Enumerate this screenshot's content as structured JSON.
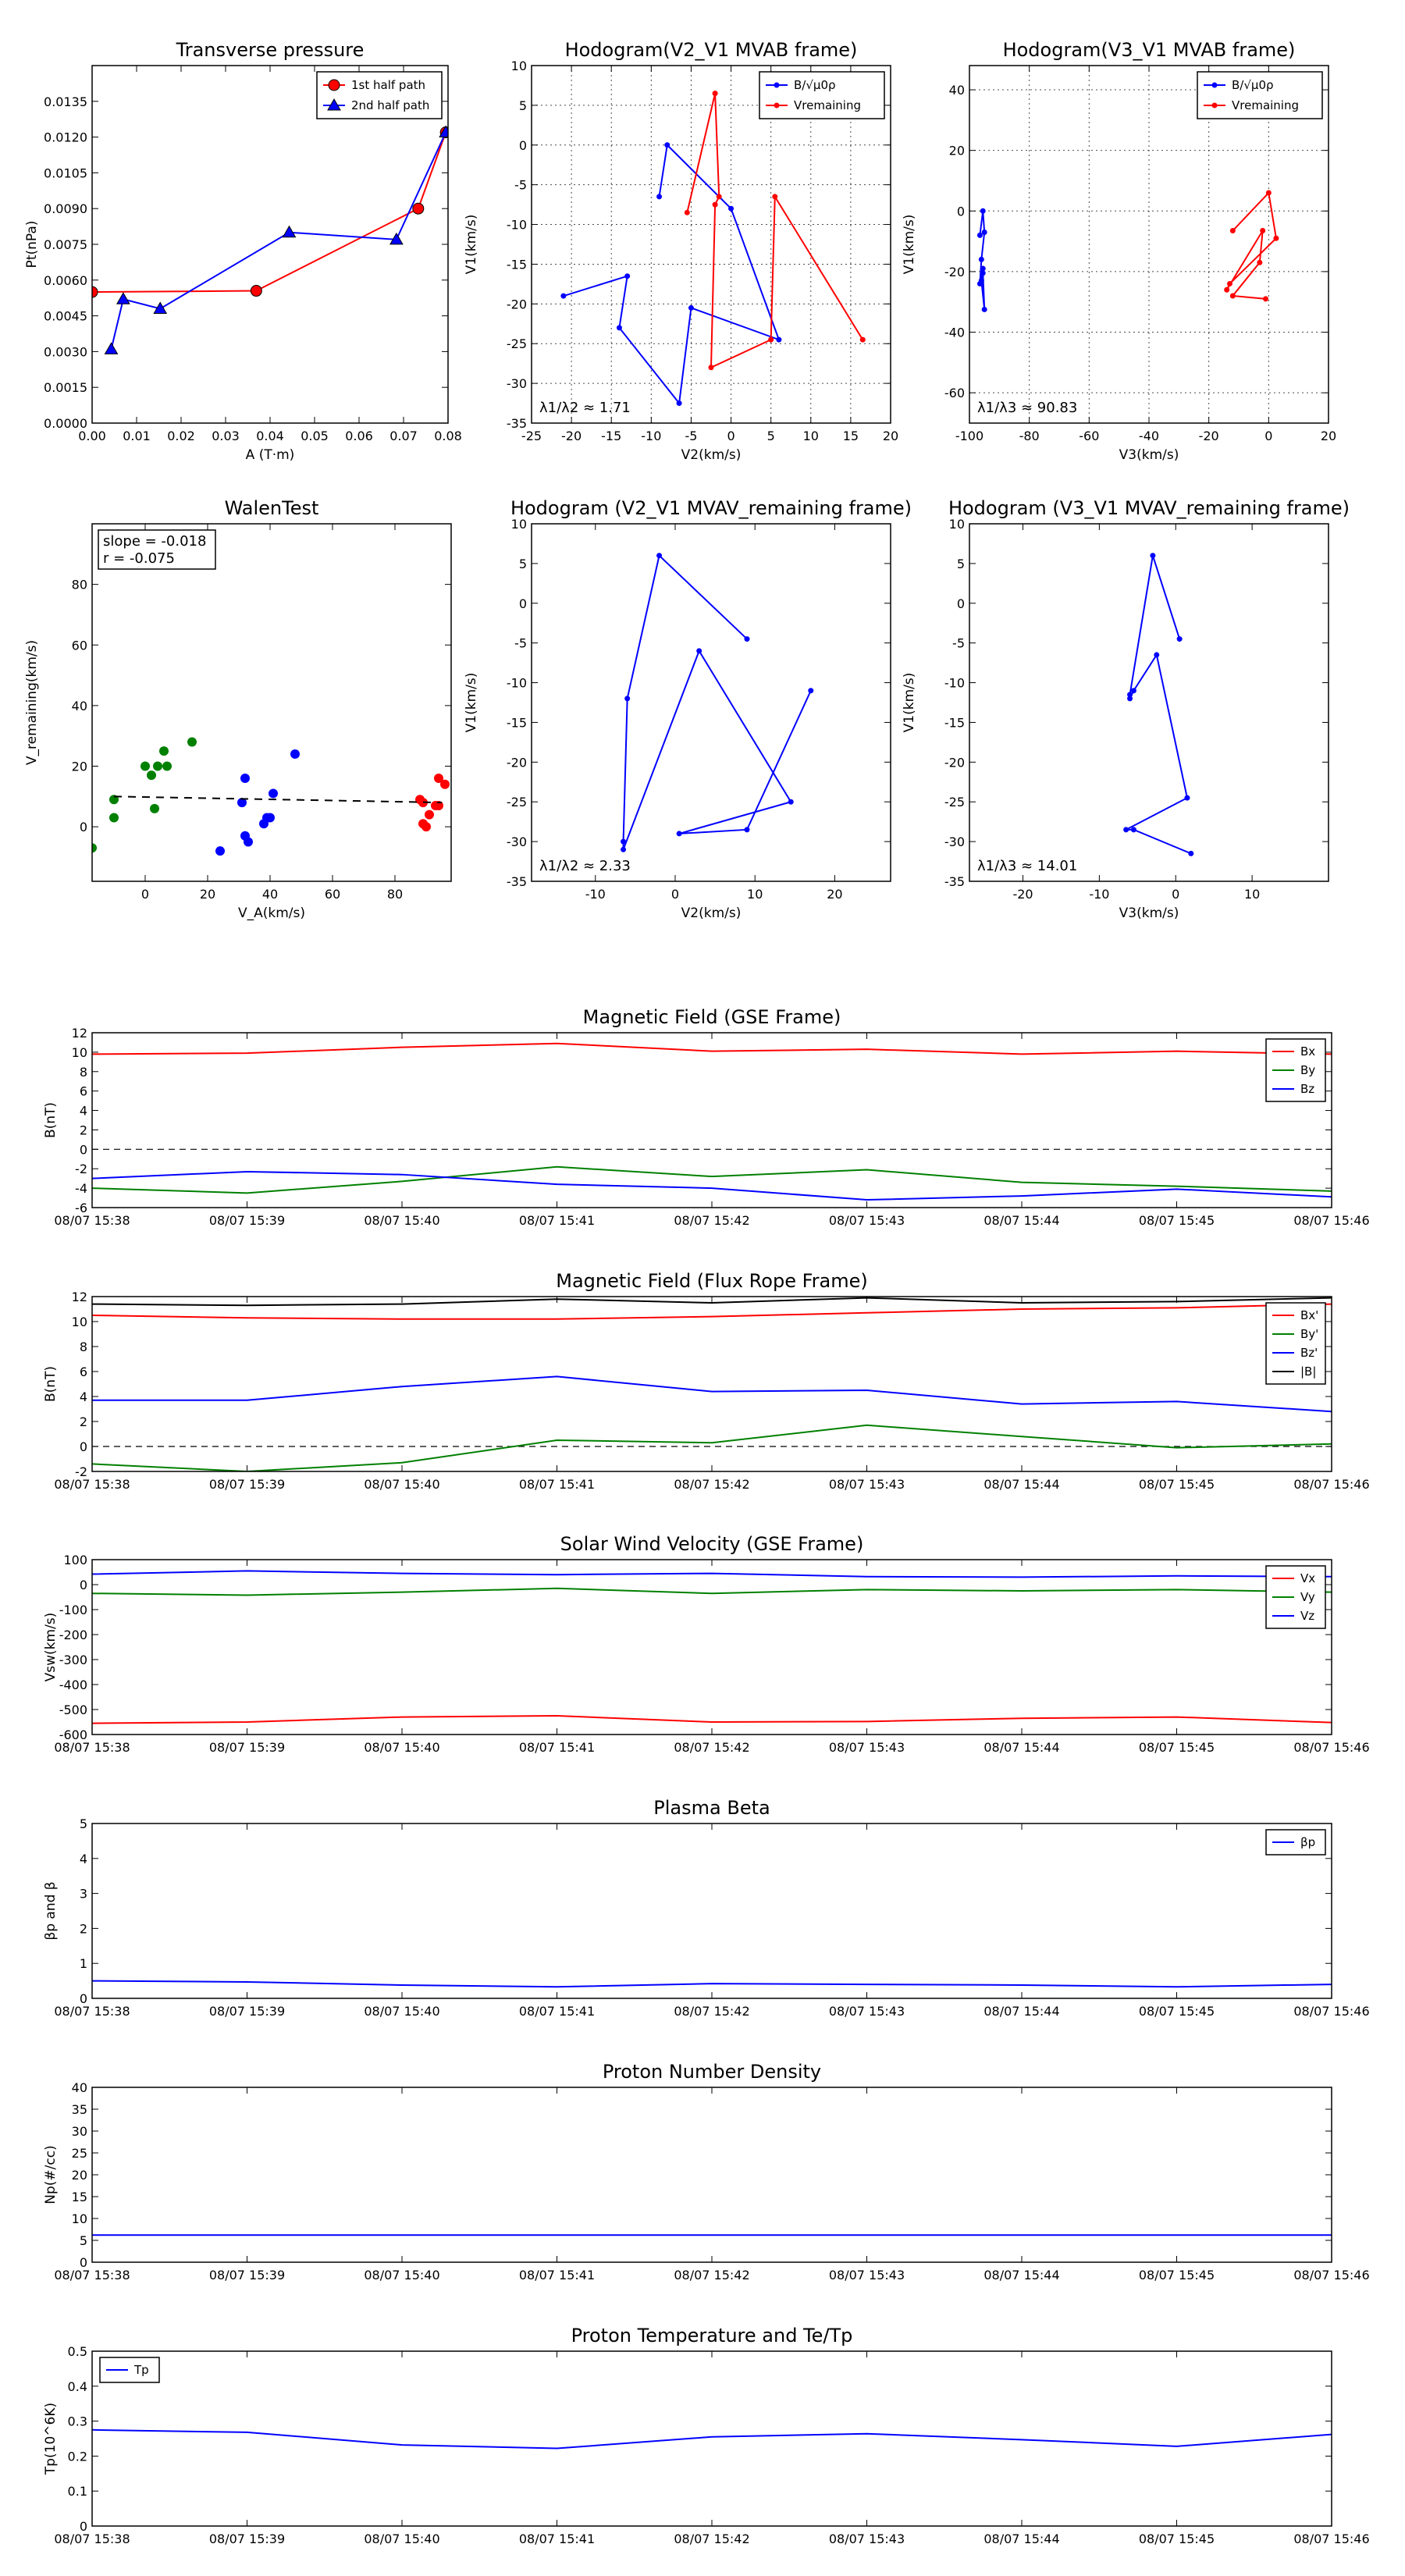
{
  "chart_data": [
    {
      "id": "tp",
      "type": "line",
      "title": "Transverse pressure",
      "xlabel": "A (T·m)",
      "ylabel": "Pt(nPa)",
      "xlim": [
        0,
        0.08
      ],
      "ylim": [
        0,
        0.015
      ],
      "xticks": [
        0,
        0.01,
        0.02,
        0.03,
        0.04,
        0.05,
        0.06,
        0.07,
        0.08
      ],
      "yticks": [
        0.0,
        0.0015,
        0.003,
        0.0045,
        0.006,
        0.0075,
        0.009,
        0.0105,
        0.012,
        0.0135
      ],
      "xtick_labels": [
        "0.00",
        "0.01",
        "0.02",
        "0.03",
        "0.04",
        "0.05",
        "0.06",
        "0.07",
        "0.08"
      ],
      "ytick_labels": [
        "0.0000",
        "0.0015",
        "0.0030",
        "0.0045",
        "0.0060",
        "0.0075",
        "0.0090",
        "0.0105",
        "0.0120",
        "0.0135"
      ],
      "grid": false,
      "legend": "top-right",
      "series": [
        {
          "name": "1st half path",
          "color": "#ff0000",
          "marker": "circle",
          "x": [
            0.0,
            0.0369,
            0.0733,
            0.0795
          ],
          "y": [
            0.0055,
            0.00555,
            0.009,
            0.0122
          ]
        },
        {
          "name": "2nd half path",
          "color": "#0000ff",
          "marker": "triangle",
          "x": [
            0.0795,
            0.0684,
            0.0443,
            0.0153,
            0.007,
            0.0043
          ],
          "y": [
            0.0122,
            0.0077,
            0.008,
            0.0048,
            0.0052,
            0.0031
          ]
        }
      ]
    },
    {
      "id": "h21",
      "type": "line",
      "title": "Hodogram(V2_V1 MVAB frame)",
      "xlabel": "V2(km/s)",
      "ylabel": "V1(km/s)",
      "xlim": [
        -25,
        20
      ],
      "ylim": [
        -35,
        10
      ],
      "xticks": [
        -25,
        -20,
        -15,
        -10,
        -5,
        0,
        5,
        10,
        15,
        20
      ],
      "yticks": [
        -35,
        -30,
        -25,
        -20,
        -15,
        -10,
        -5,
        0,
        5,
        10
      ],
      "grid": true,
      "legend": "top-right",
      "annotation": "λ1/λ2 ≈ 1.71",
      "series": [
        {
          "name": "B/√μ0ρ",
          "color": "#0000ff",
          "marker": "dot",
          "x": [
            -9,
            -8,
            0,
            6,
            -5,
            -6.5,
            -14,
            -13,
            -21
          ],
          "y": [
            -6.5,
            0,
            -8,
            -24.5,
            -20.5,
            -32.5,
            -23,
            -16.5,
            -19
          ]
        },
        {
          "name": "Vremaining",
          "color": "#ff0000",
          "marker": "dot",
          "x": [
            -5.5,
            -2,
            -1.5,
            -2,
            -2.5,
            5,
            5.5,
            16.5
          ],
          "y": [
            -8.5,
            6.5,
            -6.5,
            -7.5,
            -28,
            -24.5,
            -6.5,
            -24.5
          ]
        }
      ]
    },
    {
      "id": "h31",
      "type": "line",
      "title": "Hodogram(V3_V1 MVAB frame)",
      "xlabel": "V3(km/s)",
      "ylabel": "V1(km/s)",
      "xlim": [
        -100,
        20
      ],
      "ylim": [
        -70,
        48
      ],
      "xticks": [
        -100,
        -80,
        -60,
        -40,
        -20,
        0,
        20
      ],
      "yticks": [
        -60,
        -40,
        -20,
        0,
        20,
        40
      ],
      "grid": true,
      "legend": "top-right",
      "annotation": "λ1/λ3 ≈ 90.83",
      "series": [
        {
          "name": "B/√μ0ρ",
          "color": "#0000ff",
          "marker": "dot",
          "x": [
            -96.5,
            -95.5,
            -95,
            -96,
            -96.5,
            -95.5,
            -95,
            -96,
            -95.5
          ],
          "y": [
            -8,
            0,
            -7,
            -16,
            -24,
            -20.5,
            -32.5,
            -23,
            -19
          ]
        },
        {
          "name": "Vremaining",
          "color": "#ff0000",
          "marker": "dot",
          "x": [
            -12,
            0,
            2.5,
            -13,
            -14,
            -2,
            -3,
            -12,
            -1
          ],
          "y": [
            -6.5,
            6,
            -9,
            -24,
            -26,
            -6.5,
            -17,
            -28,
            -29
          ]
        }
      ]
    },
    {
      "id": "walen",
      "type": "scatter",
      "title": "WalenTest",
      "xlabel": "V_A(km/s)",
      "ylabel": "V_remaining(km/s)",
      "xlim": [
        -17,
        98
      ],
      "ylim": [
        -18,
        100
      ],
      "xticks": [
        0,
        20,
        40,
        60,
        80
      ],
      "yticks": [
        0,
        20,
        40,
        60,
        80
      ],
      "grid": false,
      "annotation_lines": [
        "slope = -0.018",
        "r = -0.075"
      ],
      "series": [
        {
          "name": "",
          "color": "#008000",
          "x": [
            -17,
            -10,
            -10,
            0,
            2,
            4,
            3,
            6,
            7,
            15
          ],
          "y": [
            -7,
            3,
            9,
            20,
            17,
            20,
            6,
            25,
            20,
            28
          ]
        },
        {
          "name": "",
          "color": "#0000ff",
          "x": [
            24,
            31,
            32,
            33,
            32,
            38,
            39,
            41,
            40,
            48
          ],
          "y": [
            -8,
            8,
            16,
            -5,
            -3,
            1,
            3,
            11,
            3,
            24
          ]
        },
        {
          "name": "",
          "color": "#ff0000",
          "x": [
            89,
            90,
            91,
            94,
            94,
            96,
            89,
            88,
            93
          ],
          "y": [
            1,
            0,
            4,
            7,
            16,
            14,
            8,
            9,
            7
          ]
        }
      ],
      "fit_line": {
        "x": [
          -10,
          95
        ],
        "y": [
          10,
          8
        ]
      }
    },
    {
      "id": "hv21",
      "type": "line",
      "title": "Hodogram (V2_V1 MVAV_remaining frame)",
      "xlabel": "V2(km/s)",
      "ylabel": "V1(km/s)",
      "xlim": [
        -18,
        27
      ],
      "ylim": [
        -35,
        10
      ],
      "xticks": [
        -10,
        0,
        10,
        20
      ],
      "yticks": [
        -35,
        -30,
        -25,
        -20,
        -15,
        -10,
        -5,
        0,
        5,
        10
      ],
      "grid": false,
      "annotation": "λ1/λ2 ≈ 2.33",
      "series": [
        {
          "name": "",
          "color": "#0000ff",
          "marker": "dot",
          "x": [
            9,
            -2,
            -6,
            -6.5,
            -6.5,
            3,
            14.5,
            0.5,
            9,
            17
          ],
          "y": [
            -4.5,
            6,
            -12,
            -30,
            -31,
            -6,
            -25,
            -29,
            -28.5,
            -11
          ]
        }
      ]
    },
    {
      "id": "hv31",
      "type": "line",
      "title": "Hodogram (V3_V1 MVAV_remaining frame)",
      "xlabel": "V3(km/s)",
      "ylabel": "V1(km/s)",
      "xlim": [
        -27,
        20
      ],
      "ylim": [
        -35,
        10
      ],
      "xticks": [
        -20,
        -10,
        0,
        10
      ],
      "yticks": [
        -35,
        -30,
        -25,
        -20,
        -15,
        -10,
        -5,
        0,
        5,
        10
      ],
      "grid": false,
      "annotation": "λ1/λ3 ≈ 14.01",
      "series": [
        {
          "name": "",
          "color": "#0000ff",
          "marker": "dot",
          "x": [
            0.5,
            -3,
            -6,
            -6,
            -5.5,
            -2.5,
            1.5,
            -6.5,
            -5.5,
            2
          ],
          "y": [
            -4.5,
            6,
            -11.5,
            -12,
            -11,
            -6.5,
            -24.5,
            -28.5,
            -28.5,
            -31.5
          ]
        }
      ]
    },
    {
      "id": "bgse",
      "type": "line",
      "title": "Magnetic Field (GSE Frame)",
      "xlabel": "",
      "ylabel": "B(nT)",
      "categories": [
        "08/07 15:38",
        "08/07 15:39",
        "08/07 15:40",
        "08/07 15:41",
        "08/07 15:42",
        "08/07 15:43",
        "08/07 15:44",
        "08/07 15:45",
        "08/07 15:46"
      ],
      "ylim": [
        -6,
        12
      ],
      "yticks": [
        -6,
        -4,
        -2,
        0,
        2,
        4,
        6,
        8,
        10,
        12
      ],
      "zero_line": true,
      "legend": "top-right",
      "series": [
        {
          "name": "Bx",
          "color": "#ff0000",
          "values": [
            9.8,
            9.9,
            10.5,
            10.9,
            10.1,
            10.3,
            9.8,
            10.1,
            9.8
          ]
        },
        {
          "name": "By",
          "color": "#008000",
          "values": [
            -4.0,
            -4.5,
            -3.3,
            -1.8,
            -2.8,
            -2.1,
            -3.4,
            -3.8,
            -4.3
          ]
        },
        {
          "name": "Bz",
          "color": "#0000ff",
          "values": [
            -3.0,
            -2.3,
            -2.6,
            -3.6,
            -4.0,
            -5.2,
            -4.8,
            -4.1,
            -4.9
          ]
        }
      ]
    },
    {
      "id": "bfr",
      "type": "line",
      "title": "Magnetic Field (Flux Rope Frame)",
      "xlabel": "",
      "ylabel": "B(nT)",
      "categories": [
        "08/07 15:38",
        "08/07 15:39",
        "08/07 15:40",
        "08/07 15:41",
        "08/07 15:42",
        "08/07 15:43",
        "08/07 15:44",
        "08/07 15:45",
        "08/07 15:46"
      ],
      "ylim": [
        -2,
        12
      ],
      "yticks": [
        -2,
        0,
        2,
        4,
        6,
        8,
        10,
        12
      ],
      "zero_line": true,
      "legend": "top-right",
      "series": [
        {
          "name": "Bx'",
          "color": "#ff0000",
          "values": [
            10.5,
            10.3,
            10.2,
            10.2,
            10.4,
            10.7,
            11.0,
            11.1,
            11.4
          ]
        },
        {
          "name": "By'",
          "color": "#008000",
          "values": [
            -1.4,
            -2.0,
            -1.3,
            0.5,
            0.3,
            1.7,
            0.8,
            -0.1,
            0.2
          ]
        },
        {
          "name": "Bz'",
          "color": "#0000ff",
          "values": [
            3.7,
            3.7,
            4.8,
            5.6,
            4.4,
            4.5,
            3.4,
            3.6,
            2.8
          ]
        },
        {
          "name": "|B|",
          "color": "#000000",
          "values": [
            11.4,
            11.3,
            11.4,
            11.8,
            11.5,
            11.9,
            11.5,
            11.6,
            11.9
          ]
        }
      ]
    },
    {
      "id": "vsw",
      "type": "line",
      "title": "Solar Wind Velocity (GSE Frame)",
      "xlabel": "",
      "ylabel": "Vsw(km/s)",
      "categories": [
        "08/07 15:38",
        "08/07 15:39",
        "08/07 15:40",
        "08/07 15:41",
        "08/07 15:42",
        "08/07 15:43",
        "08/07 15:44",
        "08/07 15:45",
        "08/07 15:46"
      ],
      "ylim": [
        -600,
        100
      ],
      "yticks": [
        -600,
        -500,
        -400,
        -300,
        -200,
        -100,
        0,
        100
      ],
      "legend": "top-right",
      "series": [
        {
          "name": "Vx",
          "color": "#ff0000",
          "values": [
            -555,
            -550,
            -530,
            -525,
            -550,
            -548,
            -535,
            -530,
            -552
          ]
        },
        {
          "name": "Vy",
          "color": "#008000",
          "values": [
            -35,
            -42,
            -30,
            -15,
            -35,
            -20,
            -25,
            -20,
            -30
          ]
        },
        {
          "name": "Vz",
          "color": "#0000ff",
          "values": [
            42,
            55,
            45,
            40,
            45,
            32,
            30,
            35,
            32
          ]
        }
      ]
    },
    {
      "id": "beta",
      "type": "line",
      "title": "Plasma Beta",
      "xlabel": "",
      "ylabel": "βp and β",
      "categories": [
        "08/07 15:38",
        "08/07 15:39",
        "08/07 15:40",
        "08/07 15:41",
        "08/07 15:42",
        "08/07 15:43",
        "08/07 15:44",
        "08/07 15:45",
        "08/07 15:46"
      ],
      "ylim": [
        0,
        5
      ],
      "yticks": [
        0,
        1,
        2,
        3,
        4,
        5
      ],
      "legend": "top-right",
      "series": [
        {
          "name": "βp",
          "color": "#0000ff",
          "values": [
            0.5,
            0.47,
            0.38,
            0.33,
            0.42,
            0.4,
            0.38,
            0.33,
            0.4
          ]
        }
      ]
    },
    {
      "id": "np",
      "type": "line",
      "title": "Proton Number Density",
      "xlabel": "",
      "ylabel": "Np(#/cc)",
      "categories": [
        "08/07 15:38",
        "08/07 15:39",
        "08/07 15:40",
        "08/07 15:41",
        "08/07 15:42",
        "08/07 15:43",
        "08/07 15:44",
        "08/07 15:45",
        "08/07 15:46"
      ],
      "ylim": [
        0,
        40
      ],
      "yticks": [
        0,
        5,
        10,
        15,
        20,
        25,
        30,
        35,
        40
      ],
      "series": [
        {
          "name": "",
          "color": "#0000ff",
          "values": [
            6.2,
            6.2,
            6.2,
            6.2,
            6.2,
            6.2,
            6.2,
            6.2,
            6.2
          ]
        }
      ]
    },
    {
      "id": "tpr",
      "type": "line",
      "title": "Proton Temperature and Te/Tp",
      "xlabel": "",
      "ylabel": "Tp(10^6K)",
      "categories": [
        "08/07 15:38",
        "08/07 15:39",
        "08/07 15:40",
        "08/07 15:41",
        "08/07 15:42",
        "08/07 15:43",
        "08/07 15:44",
        "08/07 15:45",
        "08/07 15:46"
      ],
      "ylim": [
        0,
        0.5
      ],
      "yticks": [
        0,
        0.1,
        0.2,
        0.3,
        0.4,
        0.5
      ],
      "legend": "top-left",
      "series": [
        {
          "name": "Tp",
          "color": "#0000ff",
          "values": [
            0.275,
            0.268,
            0.232,
            0.222,
            0.255,
            0.264,
            0.247,
            0.228,
            0.262
          ]
        }
      ]
    }
  ]
}
